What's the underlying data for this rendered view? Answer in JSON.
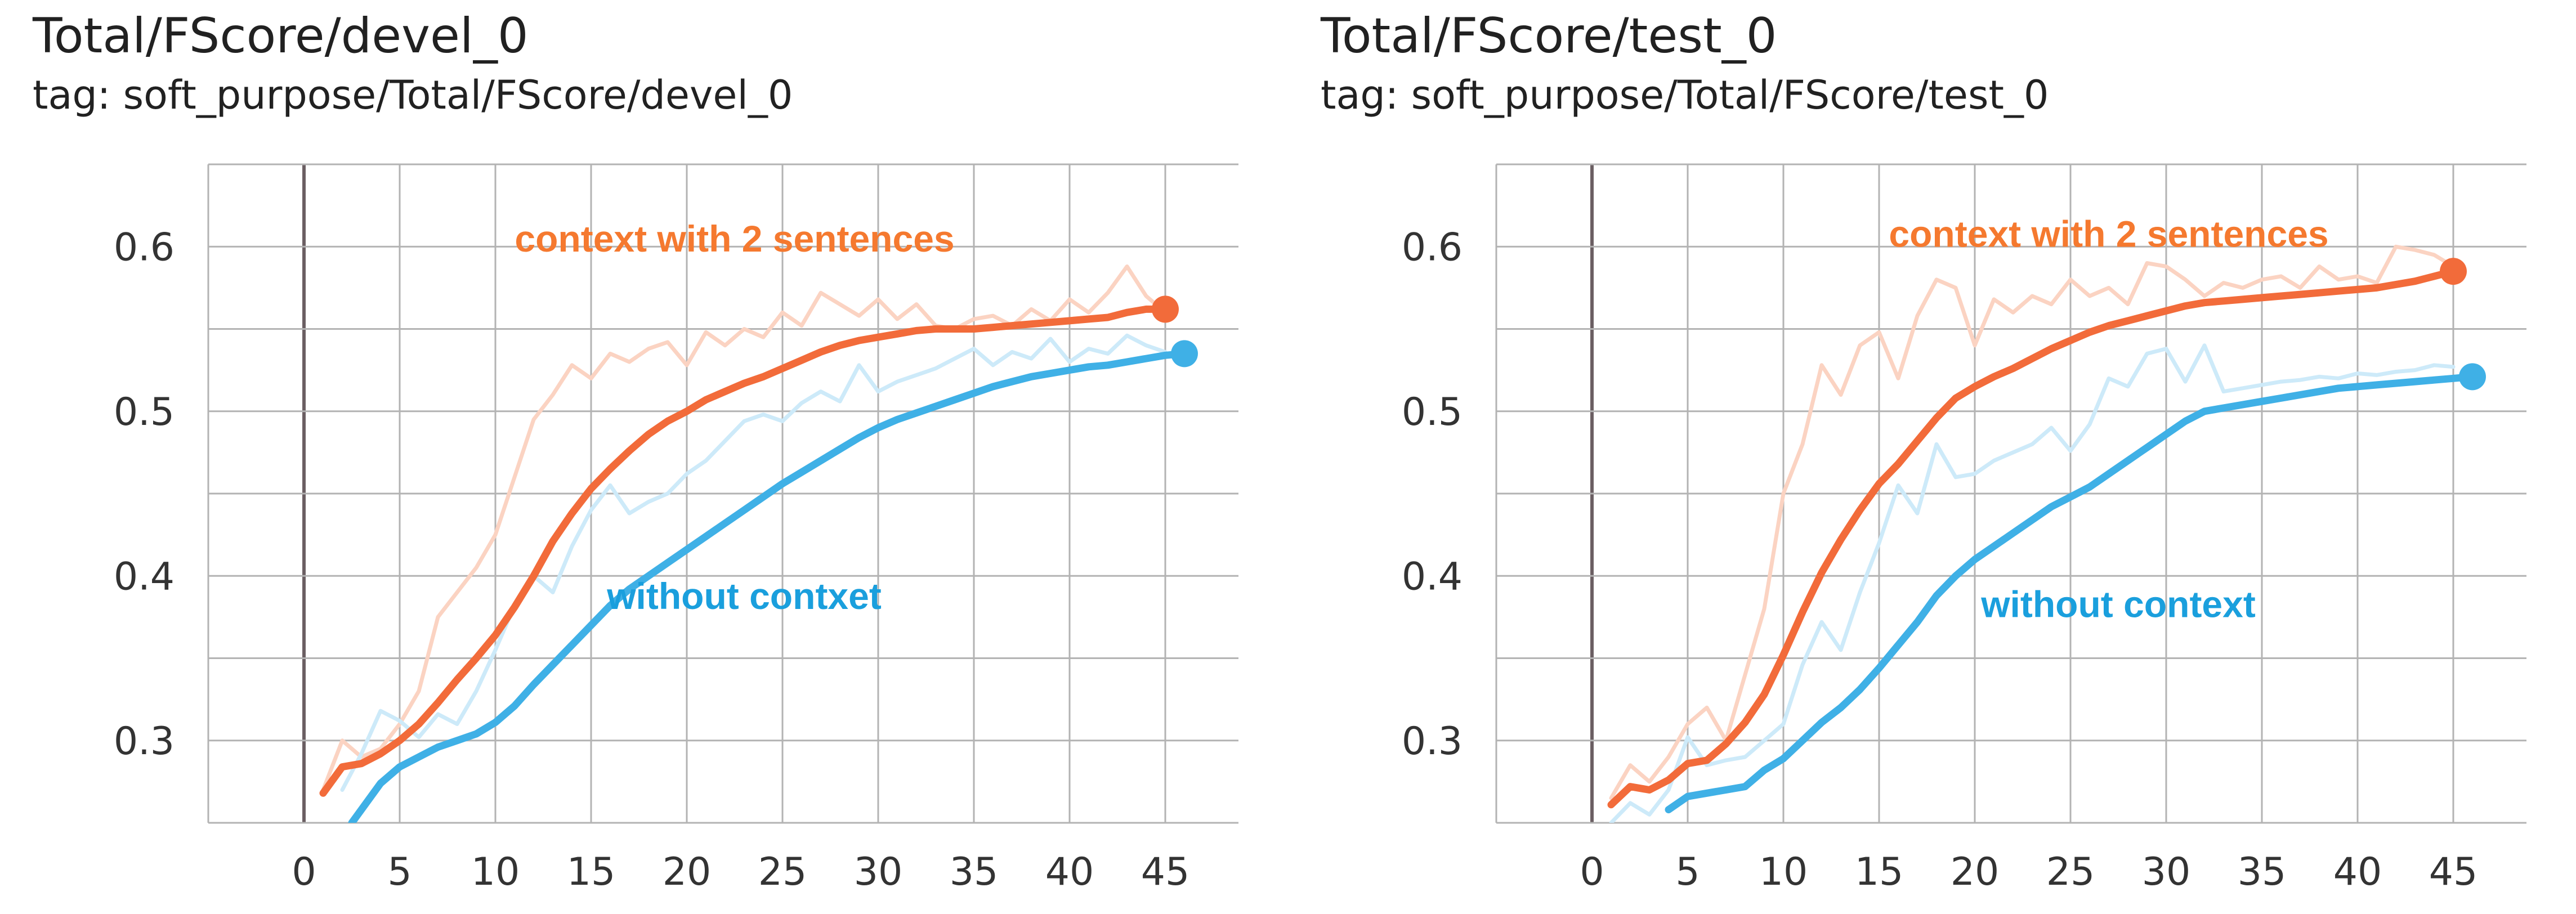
{
  "colors": {
    "context": "#f26b3a",
    "context_raw": "#fbd3c2",
    "without": "#3fb0e6",
    "without_raw": "#cdeaf9",
    "grid": "#b3b3b3",
    "zero_line": "#6b5f63",
    "annotation_context": "#f5792f",
    "annotation_without": "#1a9fdd"
  },
  "chart_data": [
    {
      "type": "line",
      "title": "Total/FScore/devel_0",
      "subtitle": "tag: soft_purpose/Total/FScore/devel_0",
      "xlim": [
        -5,
        50
      ],
      "ylim": [
        0.25,
        0.65
      ],
      "xticks": [
        0,
        5,
        10,
        15,
        20,
        25,
        30,
        35,
        40,
        45
      ],
      "yticks": [
        0.3,
        0.4,
        0.5,
        0.6
      ],
      "grid": true,
      "annotations": [
        {
          "text": "context with 2 sentences",
          "color": "annotation_context",
          "x": 22.5,
          "y": 0.597
        },
        {
          "text": "without contxet",
          "color": "annotation_without",
          "x": 23.0,
          "y": 0.38
        }
      ],
      "series": [
        {
          "key": "context_raw",
          "color": "context_raw",
          "x": [
            1,
            2,
            3,
            4,
            5,
            6,
            7,
            8,
            9,
            10,
            11,
            12,
            13,
            14,
            15,
            16,
            17,
            18,
            19,
            20,
            21,
            22,
            23,
            24,
            25,
            26,
            27,
            28,
            29,
            30,
            31,
            32,
            33,
            34,
            35,
            36,
            37,
            38,
            39,
            40,
            41,
            42,
            43,
            44,
            45
          ],
          "y": [
            0.27,
            0.3,
            0.29,
            0.295,
            0.31,
            0.33,
            0.375,
            0.39,
            0.405,
            0.425,
            0.46,
            0.495,
            0.51,
            0.528,
            0.52,
            0.535,
            0.53,
            0.538,
            0.542,
            0.528,
            0.548,
            0.54,
            0.55,
            0.545,
            0.56,
            0.552,
            0.572,
            0.565,
            0.558,
            0.568,
            0.556,
            0.565,
            0.552,
            0.55,
            0.556,
            0.558,
            0.552,
            0.562,
            0.555,
            0.568,
            0.56,
            0.572,
            0.588,
            0.57,
            0.56
          ]
        },
        {
          "key": "without_raw",
          "color": "without_raw",
          "x": [
            2,
            3,
            4,
            5,
            6,
            7,
            8,
            9,
            10,
            11,
            12,
            13,
            14,
            15,
            16,
            17,
            18,
            19,
            20,
            21,
            22,
            23,
            24,
            25,
            26,
            27,
            28,
            29,
            30,
            31,
            32,
            33,
            34,
            35,
            36,
            37,
            38,
            39,
            40,
            41,
            42,
            43,
            44,
            45
          ],
          "y": [
            0.27,
            0.292,
            0.318,
            0.312,
            0.302,
            0.316,
            0.31,
            0.33,
            0.355,
            0.382,
            0.4,
            0.39,
            0.418,
            0.44,
            0.455,
            0.438,
            0.445,
            0.45,
            0.462,
            0.47,
            0.482,
            0.494,
            0.498,
            0.494,
            0.505,
            0.512,
            0.506,
            0.528,
            0.512,
            0.518,
            0.522,
            0.526,
            0.532,
            0.538,
            0.528,
            0.536,
            0.532,
            0.544,
            0.53,
            0.538,
            0.535,
            0.546,
            0.54,
            0.536
          ]
        },
        {
          "key": "context",
          "color": "context",
          "endpoint": true,
          "x": [
            1,
            2,
            3,
            4,
            5,
            6,
            7,
            8,
            9,
            10,
            11,
            12,
            13,
            14,
            15,
            16,
            17,
            18,
            19,
            20,
            21,
            22,
            23,
            24,
            25,
            26,
            27,
            28,
            29,
            30,
            31,
            32,
            33,
            34,
            35,
            36,
            37,
            38,
            39,
            40,
            41,
            42,
            43,
            44,
            45
          ],
          "y": [
            0.268,
            0.284,
            0.286,
            0.292,
            0.3,
            0.31,
            0.323,
            0.337,
            0.35,
            0.364,
            0.381,
            0.4,
            0.421,
            0.438,
            0.453,
            0.465,
            0.476,
            0.486,
            0.494,
            0.5,
            0.507,
            0.512,
            0.517,
            0.521,
            0.526,
            0.531,
            0.536,
            0.54,
            0.543,
            0.545,
            0.547,
            0.549,
            0.55,
            0.55,
            0.55,
            0.551,
            0.552,
            0.553,
            0.554,
            0.555,
            0.556,
            0.557,
            0.56,
            0.562,
            0.562
          ]
        },
        {
          "key": "without",
          "color": "without",
          "endpoint": true,
          "x": [
            2.5,
            3,
            4,
            5,
            6,
            7,
            8,
            9,
            10,
            11,
            12,
            13,
            14,
            15,
            16,
            17,
            18,
            19,
            20,
            21,
            22,
            23,
            24,
            25,
            26,
            27,
            28,
            29,
            30,
            31,
            32,
            33,
            34,
            35,
            36,
            37,
            38,
            39,
            40,
            41,
            42,
            43,
            44,
            45,
            46
          ],
          "y": [
            0.25,
            0.258,
            0.274,
            0.284,
            0.29,
            0.296,
            0.3,
            0.304,
            0.311,
            0.321,
            0.334,
            0.346,
            0.358,
            0.37,
            0.382,
            0.392,
            0.4,
            0.408,
            0.416,
            0.424,
            0.432,
            0.44,
            0.448,
            0.456,
            0.463,
            0.47,
            0.477,
            0.484,
            0.49,
            0.495,
            0.499,
            0.503,
            0.507,
            0.511,
            0.515,
            0.518,
            0.521,
            0.523,
            0.525,
            0.527,
            0.528,
            0.53,
            0.532,
            0.534,
            0.535
          ]
        }
      ]
    },
    {
      "type": "line",
      "title": "Total/FScore/test_0",
      "subtitle": "tag: soft_purpose/Total/FScore/test_0",
      "xlim": [
        -5,
        50
      ],
      "ylim": [
        0.25,
        0.65
      ],
      "xticks": [
        0,
        5,
        10,
        15,
        20,
        25,
        30,
        35,
        40,
        45
      ],
      "yticks": [
        0.3,
        0.4,
        0.5,
        0.6
      ],
      "grid": true,
      "annotations": [
        {
          "text": "context with 2 sentences",
          "color": "annotation_context",
          "x": 27.0,
          "y": 0.6
        },
        {
          "text": "without context",
          "color": "annotation_without",
          "x": 27.5,
          "y": 0.375
        }
      ],
      "series": [
        {
          "key": "context_raw",
          "color": "context_raw",
          "x": [
            1,
            2,
            3,
            4,
            5,
            6,
            7,
            8,
            9,
            10,
            11,
            12,
            13,
            14,
            15,
            16,
            17,
            18,
            19,
            20,
            21,
            22,
            23,
            24,
            25,
            26,
            27,
            28,
            29,
            30,
            31,
            32,
            33,
            34,
            35,
            36,
            37,
            38,
            39,
            40,
            41,
            42,
            43,
            44,
            45
          ],
          "y": [
            0.265,
            0.285,
            0.275,
            0.29,
            0.31,
            0.32,
            0.3,
            0.34,
            0.38,
            0.45,
            0.48,
            0.528,
            0.51,
            0.54,
            0.548,
            0.52,
            0.558,
            0.58,
            0.575,
            0.54,
            0.568,
            0.56,
            0.57,
            0.565,
            0.58,
            0.57,
            0.575,
            0.565,
            0.59,
            0.588,
            0.58,
            0.57,
            0.578,
            0.575,
            0.58,
            0.582,
            0.575,
            0.588,
            0.58,
            0.582,
            0.578,
            0.6,
            0.598,
            0.595,
            0.588
          ]
        },
        {
          "key": "without_raw",
          "color": "without_raw",
          "x": [
            1,
            2,
            3,
            4,
            5,
            6,
            7,
            8,
            9,
            10,
            11,
            12,
            13,
            14,
            15,
            16,
            17,
            18,
            19,
            20,
            21,
            22,
            23,
            24,
            25,
            26,
            27,
            28,
            29,
            30,
            31,
            32,
            33,
            34,
            35,
            36,
            37,
            38,
            39,
            40,
            41,
            42,
            43,
            44,
            45
          ],
          "y": [
            0.25,
            0.262,
            0.255,
            0.27,
            0.302,
            0.285,
            0.288,
            0.29,
            0.3,
            0.31,
            0.346,
            0.372,
            0.355,
            0.39,
            0.42,
            0.455,
            0.438,
            0.48,
            0.46,
            0.462,
            0.47,
            0.475,
            0.48,
            0.49,
            0.476,
            0.492,
            0.52,
            0.515,
            0.535,
            0.538,
            0.518,
            0.54,
            0.512,
            0.514,
            0.516,
            0.518,
            0.519,
            0.521,
            0.52,
            0.523,
            0.522,
            0.524,
            0.525,
            0.528,
            0.527
          ]
        },
        {
          "key": "context",
          "color": "context",
          "endpoint": true,
          "x": [
            1,
            2,
            3,
            4,
            5,
            6,
            7,
            8,
            9,
            10,
            11,
            12,
            13,
            14,
            15,
            16,
            17,
            18,
            19,
            20,
            21,
            22,
            23,
            24,
            25,
            26,
            27,
            28,
            29,
            30,
            31,
            32,
            33,
            34,
            35,
            36,
            37,
            38,
            39,
            40,
            41,
            42,
            43,
            44,
            45
          ],
          "y": [
            0.261,
            0.272,
            0.27,
            0.276,
            0.286,
            0.288,
            0.298,
            0.311,
            0.328,
            0.352,
            0.378,
            0.402,
            0.422,
            0.44,
            0.456,
            0.468,
            0.482,
            0.496,
            0.508,
            0.515,
            0.521,
            0.526,
            0.532,
            0.538,
            0.543,
            0.548,
            0.552,
            0.555,
            0.558,
            0.561,
            0.564,
            0.566,
            0.567,
            0.568,
            0.569,
            0.57,
            0.571,
            0.572,
            0.573,
            0.574,
            0.575,
            0.577,
            0.579,
            0.582,
            0.585
          ]
        },
        {
          "key": "without",
          "color": "without",
          "endpoint": true,
          "x": [
            4,
            5,
            6,
            7,
            8,
            9,
            10,
            11,
            12,
            13,
            14,
            15,
            16,
            17,
            18,
            19,
            20,
            21,
            22,
            23,
            24,
            25,
            26,
            27,
            28,
            29,
            30,
            31,
            32,
            33,
            34,
            35,
            36,
            37,
            38,
            39,
            40,
            41,
            42,
            43,
            44,
            45,
            46
          ],
          "y": [
            0.258,
            0.266,
            0.268,
            0.27,
            0.272,
            0.282,
            0.289,
            0.3,
            0.311,
            0.32,
            0.331,
            0.344,
            0.358,
            0.372,
            0.388,
            0.4,
            0.41,
            0.418,
            0.426,
            0.434,
            0.442,
            0.448,
            0.454,
            0.462,
            0.47,
            0.478,
            0.486,
            0.494,
            0.5,
            0.502,
            0.504,
            0.506,
            0.508,
            0.51,
            0.512,
            0.514,
            0.515,
            0.516,
            0.517,
            0.518,
            0.519,
            0.52,
            0.521
          ]
        }
      ]
    }
  ]
}
